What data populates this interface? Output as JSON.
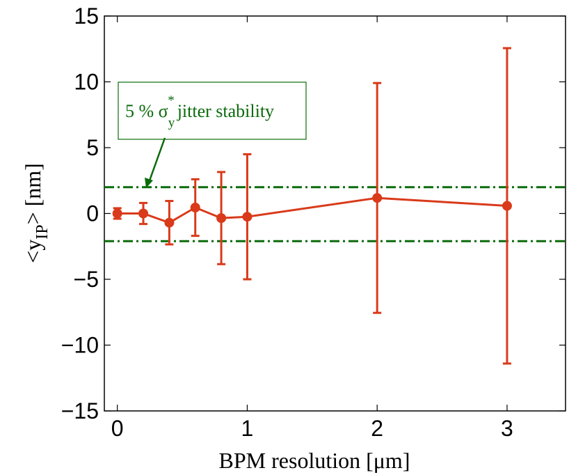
{
  "chart_data": {
    "type": "errorbar",
    "x": [
      0,
      0.2,
      0.4,
      0.6,
      0.8,
      1,
      2,
      3
    ],
    "values": [
      0,
      0,
      -0.7,
      0.45,
      -0.35,
      -0.25,
      1.18,
      0.58
    ],
    "errors": [
      0.4,
      0.8,
      1.65,
      2.15,
      3.5,
      4.75,
      8.73,
      11.98
    ],
    "color": "#d93a1a",
    "xlim": [
      -0.1,
      3.45
    ],
    "ylim": [
      -15,
      15
    ],
    "xticks": [
      0,
      1,
      2,
      3
    ],
    "yticks": [
      {
        "value": -15,
        "label": "−15"
      },
      {
        "value": -10,
        "label": "−10"
      },
      {
        "value": -5,
        "label": "−5"
      },
      0,
      5,
      10,
      15
    ],
    "x_label": "BPM resolution [μm]",
    "y_label": {
      "main": "<y",
      "sub": "IP",
      "tail": "> [nm]"
    },
    "hlines": [
      2,
      -2.1
    ],
    "hline_color": "#0b6b0b",
    "annotation": {
      "main": "5 % σ",
      "sub": "y",
      "sup": "*",
      "tail": "jitter stability"
    }
  }
}
